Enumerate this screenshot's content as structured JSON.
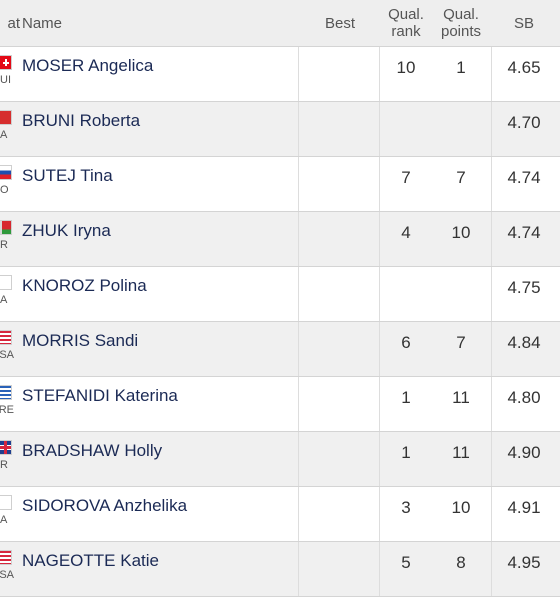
{
  "header": {
    "nat": "at",
    "name": "Name",
    "best": "Best",
    "qual_rank": [
      "Qual.",
      "rank"
    ],
    "qual_points": [
      "Qual.",
      "points"
    ],
    "sb": "SB"
  },
  "rows": [
    {
      "flag": "f-sui",
      "code": "UI",
      "name": "MOSER Angelica",
      "qual_rank": "10",
      "qual_points": "1",
      "sb": "4.65"
    },
    {
      "flag": "f-ita",
      "code": "A",
      "name": "BRUNI Roberta",
      "qual_rank": "",
      "qual_points": "",
      "sb": "4.70"
    },
    {
      "flag": "f-slo",
      "code": "O",
      "name": "SUTEJ Tina",
      "qual_rank": "7",
      "qual_points": "7",
      "sb": "4.74"
    },
    {
      "flag": "f-blr",
      "code": "R",
      "name": "ZHUK Iryna",
      "qual_rank": "4",
      "qual_points": "10",
      "sb": "4.74"
    },
    {
      "flag": "f-blank",
      "code": "A",
      "name": "KNOROZ Polina",
      "qual_rank": "",
      "qual_points": "",
      "sb": "4.75"
    },
    {
      "flag": "f-usa",
      "code": "SA",
      "name": "MORRIS Sandi",
      "qual_rank": "6",
      "qual_points": "7",
      "sb": "4.84"
    },
    {
      "flag": "f-gre",
      "code": "RE",
      "name": "STEFANIDI Katerina",
      "qual_rank": "1",
      "qual_points": "11",
      "sb": "4.80"
    },
    {
      "flag": "f-gbr",
      "code": "R",
      "name": "BRADSHAW Holly",
      "qual_rank": "1",
      "qual_points": "11",
      "sb": "4.90"
    },
    {
      "flag": "f-blank",
      "code": "A",
      "name": "SIDOROVA Anzhelika",
      "qual_rank": "3",
      "qual_points": "10",
      "sb": "4.91"
    },
    {
      "flag": "f-usa",
      "code": "SA",
      "name": "NAGEOTTE Katie",
      "qual_rank": "5",
      "qual_points": "8",
      "sb": "4.95"
    }
  ]
}
